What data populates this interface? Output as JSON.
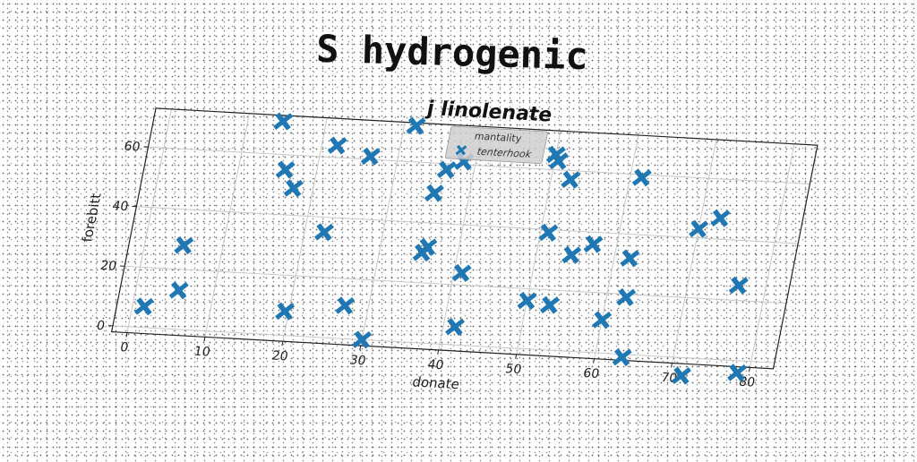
{
  "page": {
    "title": "S hydrogenic"
  },
  "chart_data": {
    "type": "scatter",
    "title": "j linolenate",
    "xlabel": "donate",
    "ylabel": "forebitt",
    "xlim": [
      -2,
      83
    ],
    "ylim": [
      -2,
      73
    ],
    "xticks": [
      0,
      10,
      20,
      30,
      40,
      50,
      60,
      70,
      80
    ],
    "yticks": [
      0,
      20,
      40,
      60
    ],
    "grid": true,
    "legend": {
      "title": "mantality",
      "placement": "top-center"
    },
    "marker": "X",
    "series": [
      {
        "name": "tenterhook",
        "color": "#1f77b4",
        "points": [
          [
            1.5,
            7
          ],
          [
            5.5,
            13
          ],
          [
            5,
            28
          ],
          [
            14.5,
            71
          ],
          [
            16,
            55
          ],
          [
            17.5,
            49
          ],
          [
            19.5,
            8
          ],
          [
            22,
            64
          ],
          [
            22.5,
            35
          ],
          [
            26.5,
            61
          ],
          [
            27,
            11
          ],
          [
            30,
            0
          ],
          [
            31.5,
            72
          ],
          [
            35.5,
            50
          ],
          [
            35.5,
            30
          ],
          [
            36,
            32
          ],
          [
            36.5,
            58
          ],
          [
            38.5,
            61
          ],
          [
            41,
            24
          ],
          [
            41.5,
            6
          ],
          [
            50,
            65
          ],
          [
            50,
            16
          ],
          [
            50.5,
            63
          ],
          [
            51,
            39
          ],
          [
            52.5,
            57
          ],
          [
            53,
            15
          ],
          [
            54.5,
            32
          ],
          [
            57,
            36
          ],
          [
            60,
            11
          ],
          [
            61.5,
            59
          ],
          [
            62,
            32
          ],
          [
            62.5,
            19
          ],
          [
            63.5,
            -1
          ],
          [
            70,
            43
          ],
          [
            71.5,
            -6
          ],
          [
            72.5,
            47
          ],
          [
            76.5,
            25
          ],
          [
            78.5,
            -4
          ]
        ]
      }
    ]
  }
}
